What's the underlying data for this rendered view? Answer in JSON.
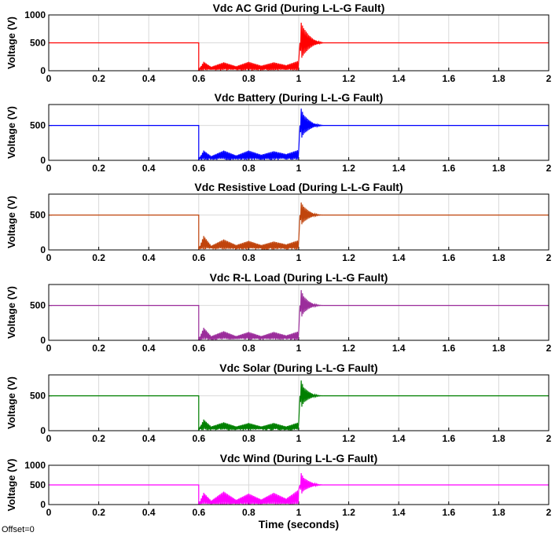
{
  "offset_label": "Offset=0",
  "chart_data": [
    {
      "type": "line",
      "title": "Vdc AC Grid (During L-L-G Fault)",
      "xlabel": "",
      "ylabel": "Voltage (V)",
      "xlim": [
        0,
        2
      ],
      "ylim": [
        0,
        1000
      ],
      "xticks": [
        "0",
        "0.2",
        "0.4",
        "0.6",
        "0.8",
        "1",
        "1.2",
        "1.4",
        "1.6",
        "1.8",
        "2"
      ],
      "yticks": [
        "0",
        "500",
        "1000"
      ],
      "grid": true,
      "color": "#ff0000",
      "x": [
        0,
        0.6,
        0.6,
        0.62,
        0.65,
        0.7,
        0.75,
        0.8,
        0.85,
        0.9,
        0.95,
        1.0,
        1.005,
        1.01,
        1.02,
        1.04,
        1.06,
        1.08,
        1.1,
        2.0
      ],
      "y": [
        500,
        500,
        10,
        160,
        70,
        150,
        80,
        160,
        90,
        150,
        100,
        180,
        500,
        860,
        760,
        640,
        560,
        520,
        500,
        500
      ]
    },
    {
      "type": "line",
      "title": "Vdc Battery (During L-L-G Fault)",
      "xlabel": "",
      "ylabel": "Voltage (V)",
      "xlim": [
        0,
        2
      ],
      "ylim": [
        0,
        800
      ],
      "xticks": [
        "0",
        "0.2",
        "0.4",
        "0.6",
        "0.8",
        "1",
        "1.2",
        "1.4",
        "1.6",
        "1.8",
        "2"
      ],
      "yticks": [
        "0",
        "500"
      ],
      "grid": true,
      "color": "#0000ff",
      "x": [
        0,
        0.6,
        0.6,
        0.62,
        0.65,
        0.7,
        0.75,
        0.8,
        0.85,
        0.9,
        0.95,
        1.0,
        1.005,
        1.01,
        1.02,
        1.04,
        1.06,
        1.08,
        1.1,
        2.0
      ],
      "y": [
        500,
        500,
        10,
        140,
        60,
        140,
        70,
        140,
        80,
        130,
        90,
        150,
        500,
        740,
        650,
        580,
        530,
        510,
        500,
        500
      ]
    },
    {
      "type": "line",
      "title": "Vdc Resistive Load (During L-L-G Fault)",
      "xlabel": "",
      "ylabel": "Voltage (V)",
      "xlim": [
        0,
        2
      ],
      "ylim": [
        0,
        800
      ],
      "xticks": [
        "0",
        "0.2",
        "0.4",
        "0.6",
        "0.8",
        "1",
        "1.2",
        "1.4",
        "1.6",
        "1.8",
        "2"
      ],
      "yticks": [
        "0",
        "500"
      ],
      "grid": true,
      "color": "#c0440c",
      "x": [
        0,
        0.6,
        0.6,
        0.62,
        0.65,
        0.7,
        0.75,
        0.8,
        0.85,
        0.9,
        0.95,
        1.0,
        1.005,
        1.01,
        1.02,
        1.04,
        1.06,
        1.08,
        1.1,
        2.0
      ],
      "y": [
        500,
        500,
        10,
        200,
        60,
        150,
        70,
        130,
        70,
        120,
        80,
        140,
        500,
        680,
        620,
        560,
        520,
        505,
        500,
        500
      ]
    },
    {
      "type": "line",
      "title": "Vdc R-L Load (During L-L-G Fault)",
      "xlabel": "",
      "ylabel": "Voltage (V)",
      "xlim": [
        0,
        2
      ],
      "ylim": [
        0,
        800
      ],
      "xticks": [
        "0",
        "0.2",
        "0.4",
        "0.6",
        "0.8",
        "1",
        "1.2",
        "1.4",
        "1.6",
        "1.8",
        "2"
      ],
      "yticks": [
        "0",
        "500"
      ],
      "grid": true,
      "color": "#9b2d9b",
      "x": [
        0,
        0.6,
        0.6,
        0.62,
        0.65,
        0.7,
        0.75,
        0.8,
        0.85,
        0.9,
        0.95,
        1.0,
        1.005,
        1.01,
        1.02,
        1.04,
        1.06,
        1.08,
        1.1,
        2.0
      ],
      "y": [
        500,
        500,
        10,
        180,
        60,
        130,
        60,
        120,
        60,
        120,
        70,
        130,
        500,
        720,
        630,
        560,
        520,
        505,
        500,
        500
      ]
    },
    {
      "type": "line",
      "title": "Vdc Solar (During L-L-G Fault)",
      "xlabel": "",
      "ylabel": "Voltage (V)",
      "xlim": [
        0,
        2
      ],
      "ylim": [
        0,
        800
      ],
      "xticks": [
        "0",
        "0.2",
        "0.4",
        "0.6",
        "0.8",
        "1",
        "1.2",
        "1.4",
        "1.6",
        "1.8",
        "2"
      ],
      "yticks": [
        "0",
        "500"
      ],
      "grid": true,
      "color": "#008000",
      "x": [
        0,
        0.6,
        0.6,
        0.62,
        0.65,
        0.7,
        0.75,
        0.8,
        0.85,
        0.9,
        0.95,
        1.0,
        1.005,
        1.01,
        1.02,
        1.04,
        1.06,
        1.08,
        1.1,
        2.0
      ],
      "y": [
        500,
        500,
        10,
        160,
        60,
        120,
        60,
        110,
        60,
        110,
        60,
        120,
        500,
        720,
        620,
        560,
        520,
        505,
        500,
        500
      ]
    },
    {
      "type": "line",
      "title": "Vdc Wind (During L-L-G Fault)",
      "xlabel": "Time (seconds)",
      "ylabel": "Voltage (V)",
      "xlim": [
        0,
        2
      ],
      "ylim": [
        0,
        1000
      ],
      "xticks": [
        "0",
        "0.2",
        "0.4",
        "0.6",
        "0.8",
        "1",
        "1.2",
        "1.4",
        "1.6",
        "1.8",
        "2"
      ],
      "yticks": [
        "0",
        "500",
        "1000"
      ],
      "grid": true,
      "color": "#ff00ff",
      "x": [
        0,
        0.6,
        0.6,
        0.62,
        0.65,
        0.7,
        0.75,
        0.8,
        0.85,
        0.9,
        0.95,
        1.0,
        1.005,
        1.01,
        1.02,
        1.04,
        1.06,
        1.08,
        1.1,
        2.0
      ],
      "y": [
        500,
        500,
        10,
        300,
        100,
        330,
        120,
        280,
        130,
        300,
        150,
        380,
        500,
        800,
        680,
        600,
        540,
        510,
        500,
        500
      ]
    }
  ]
}
